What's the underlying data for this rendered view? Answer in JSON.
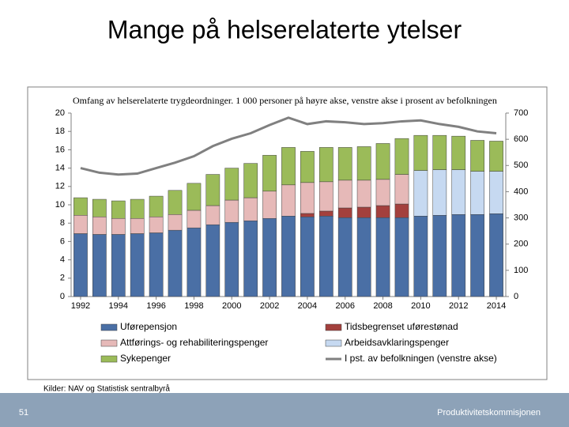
{
  "slide": {
    "title": "Mange på helserelaterte ytelser",
    "page_number": "51",
    "footer": "Produktivitetskommisjonen"
  },
  "chart_data": {
    "type": "bar",
    "stacked": true,
    "subtitle": "Omfang av helserelaterte trygdeordninger. 1 000 personer på høyre akse, venstre akse i prosent av befolkningen",
    "source": "Kilder: NAV og Statistisk sentralbyrå",
    "x": [
      1992,
      1993,
      1994,
      1995,
      1996,
      1997,
      1998,
      1999,
      2000,
      2001,
      2002,
      2003,
      2004,
      2005,
      2006,
      2007,
      2008,
      2009,
      2010,
      2011,
      2012,
      2013,
      2014
    ],
    "xlim": [
      1991.5,
      2014.5
    ],
    "xticks": [
      1992,
      1994,
      1996,
      1998,
      2000,
      2002,
      2004,
      2006,
      2008,
      2010,
      2012,
      2014
    ],
    "ylim": [
      0,
      20
    ],
    "yticks": [
      0,
      2,
      4,
      6,
      8,
      10,
      12,
      14,
      16,
      18,
      20
    ],
    "y2lim": [
      0,
      700
    ],
    "y2ticks": [
      0,
      100,
      200,
      300,
      400,
      500,
      600,
      700
    ],
    "grid": false,
    "series": [
      {
        "name": "Uførepensjon",
        "color": "#4a6fa5",
        "axis": "y2",
        "type": "bar",
        "values": [
          240,
          237,
          237,
          240,
          243,
          253,
          262,
          274,
          283,
          289,
          298,
          307,
          304,
          307,
          301,
          301,
          301,
          301,
          307,
          310,
          313,
          313,
          316
        ]
      },
      {
        "name": "Tidsbegrenset uførestønad",
        "color": "#a3403d",
        "axis": "y2",
        "type": "bar",
        "values": [
          null,
          null,
          null,
          null,
          null,
          null,
          null,
          null,
          null,
          null,
          null,
          null,
          13,
          19,
          37,
          40,
          46,
          52,
          null,
          null,
          null,
          null,
          null
        ]
      },
      {
        "name": "Attførings- og rehabiliteringspenger",
        "color": "#e6b9b8",
        "axis": "y2",
        "type": "bar",
        "values": [
          70,
          67,
          61,
          58,
          61,
          60,
          67,
          73,
          85,
          88,
          104,
          119,
          118,
          112,
          106,
          103,
          100,
          113,
          null,
          null,
          null,
          null,
          null
        ]
      },
      {
        "name": "Arbeidsavklaringspenger",
        "color": "#c6d9f1",
        "axis": "y2",
        "type": "bar",
        "values": [
          null,
          null,
          null,
          null,
          null,
          null,
          null,
          null,
          null,
          null,
          null,
          null,
          null,
          null,
          null,
          null,
          null,
          null,
          174,
          174,
          171,
          165,
          162
        ]
      },
      {
        "name": "Sykepenger",
        "color": "#9bbb59",
        "axis": "y2",
        "type": "bar",
        "values": [
          67,
          67,
          67,
          73,
          79,
          92,
          103,
          119,
          122,
          131,
          137,
          143,
          119,
          131,
          125,
          128,
          137,
          137,
          134,
          131,
          128,
          118,
          115
        ]
      },
      {
        "name": "I pst. av befolkningen (venstre akse)",
        "color": "#808080",
        "axis": "y",
        "type": "line",
        "values": [
          14.0,
          13.5,
          13.3,
          13.4,
          14.0,
          14.6,
          15.3,
          16.4,
          17.2,
          17.8,
          18.7,
          19.5,
          18.8,
          19.1,
          19.0,
          18.8,
          18.9,
          19.1,
          19.2,
          18.8,
          18.5,
          18.0,
          17.8
        ]
      }
    ]
  }
}
